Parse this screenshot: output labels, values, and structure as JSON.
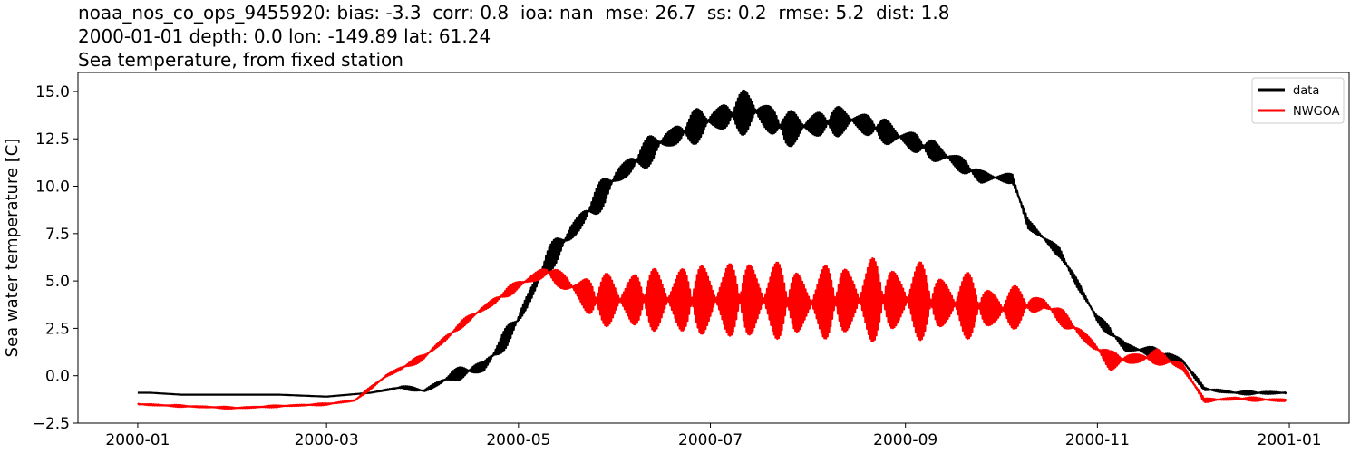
{
  "title_lines": [
    "noaa_nos_co_ops_9455920: bias: -3.3  corr: 0.8  ioa: nan  mse: 26.7  ss: 0.2  rmse: 5.2  dist: 1.8",
    "2000-01-01 depth: 0.0 lon: -149.89 lat: 61.24",
    "Sea temperature, from fixed station"
  ],
  "chart_data": {
    "type": "line",
    "title": "noaa_nos_co_ops_9455920: bias: -3.3  corr: 0.8  ioa: nan  mse: 26.7  ss: 0.2  rmse: 5.2  dist: 1.8\n2000-01-01 depth: 0.0 lon: -149.89 lat: 61.24\nSea temperature, from fixed station",
    "xlabel": "",
    "ylabel": "Sea water temperature [C]",
    "xlim": [
      "1999-12-13",
      "2001-01-20"
    ],
    "ylim": [
      -2.5,
      16.0
    ],
    "x_ticks": [
      "2000-01",
      "2000-03",
      "2000-05",
      "2000-07",
      "2000-09",
      "2000-11",
      "2001-01"
    ],
    "y_ticks": [
      -2.5,
      0.0,
      2.5,
      5.0,
      7.5,
      10.0,
      12.5,
      15.0
    ],
    "y_tick_labels": [
      "−2.5",
      "0.0",
      "2.5",
      "5.0",
      "7.5",
      "10.0",
      "12.5",
      "15.0"
    ],
    "grid": false,
    "legend": "top-right",
    "series": [
      {
        "name": "data",
        "color": "#000000",
        "x": [
          "2000-01-01",
          "2000-01-05",
          "2000-01-15",
          "2000-02-01",
          "2000-02-15",
          "2000-03-01",
          "2000-03-08",
          "2000-03-15",
          "2000-03-25",
          "2000-04-01",
          "2000-04-10",
          "2000-04-20",
          "2000-04-25",
          "2000-05-01",
          "2000-05-10",
          "2000-05-20",
          "2000-06-01",
          "2000-06-15",
          "2000-07-01",
          "2000-07-15",
          "2000-07-25",
          "2000-08-01",
          "2000-08-15",
          "2000-09-01",
          "2000-09-15",
          "2000-09-25",
          "2000-10-05",
          "2000-10-10",
          "2000-10-20",
          "2000-11-01",
          "2000-11-10",
          "2000-11-20",
          "2000-11-28",
          "2000-12-05",
          "2000-12-15",
          "2000-12-31"
        ],
        "y": [
          -0.9,
          -0.9,
          -1.0,
          -1.0,
          -1.0,
          -1.1,
          -1.0,
          -0.9,
          -0.6,
          -0.8,
          0.0,
          0.5,
          1.5,
          3.0,
          6.0,
          8.0,
          10.5,
          12.3,
          13.5,
          14.0,
          13.0,
          13.2,
          13.5,
          12.5,
          11.5,
          10.5,
          10.4,
          8.0,
          6.5,
          3.0,
          1.5,
          1.2,
          0.8,
          -0.7,
          -0.9,
          -0.9
        ],
        "amp": [
          0,
          0,
          0,
          0,
          0,
          0,
          0,
          0,
          0.1,
          0.1,
          0.3,
          0.5,
          0.5,
          0.6,
          0.7,
          0.8,
          0.8,
          0.8,
          1.0,
          1.3,
          1.0,
          1.0,
          0.8,
          0.7,
          0.6,
          0.4,
          0.3,
          0.3,
          0.3,
          0.3,
          0.3,
          0.3,
          0.2,
          0.1,
          0.1,
          0.1
        ]
      },
      {
        "name": "NWGOA",
        "color": "#ff0000",
        "x": [
          "2000-01-01",
          "2000-01-15",
          "2000-02-01",
          "2000-02-15",
          "2000-03-01",
          "2000-03-10",
          "2000-03-20",
          "2000-04-01",
          "2000-04-15",
          "2000-05-01",
          "2000-05-10",
          "2000-05-15",
          "2000-05-25",
          "2000-06-15",
          "2000-07-01",
          "2000-07-20",
          "2000-08-01",
          "2000-08-15",
          "2000-09-01",
          "2000-09-15",
          "2000-10-01",
          "2000-10-15",
          "2000-10-25",
          "2000-11-05",
          "2000-11-20",
          "2000-11-28",
          "2000-12-05",
          "2000-12-15",
          "2000-12-31"
        ],
        "y": [
          -1.5,
          -1.6,
          -1.7,
          -1.6,
          -1.5,
          -1.3,
          0.0,
          1.0,
          3.0,
          4.8,
          5.5,
          5.0,
          4.0,
          4.0,
          4.0,
          4.0,
          3.8,
          4.0,
          4.0,
          3.8,
          3.5,
          3.8,
          2.5,
          0.8,
          1.0,
          0.5,
          -1.3,
          -1.2,
          -1.3
        ],
        "amp": [
          0.05,
          0.05,
          0.05,
          0.05,
          0.05,
          0.05,
          0.1,
          0.2,
          0.2,
          0.3,
          0.4,
          0.5,
          1.5,
          2.0,
          2.3,
          2.5,
          2.0,
          2.5,
          2.3,
          2.0,
          1.5,
          0.5,
          0.4,
          0.5,
          0.4,
          0.3,
          0.1,
          0.1,
          0.1
        ]
      }
    ]
  }
}
